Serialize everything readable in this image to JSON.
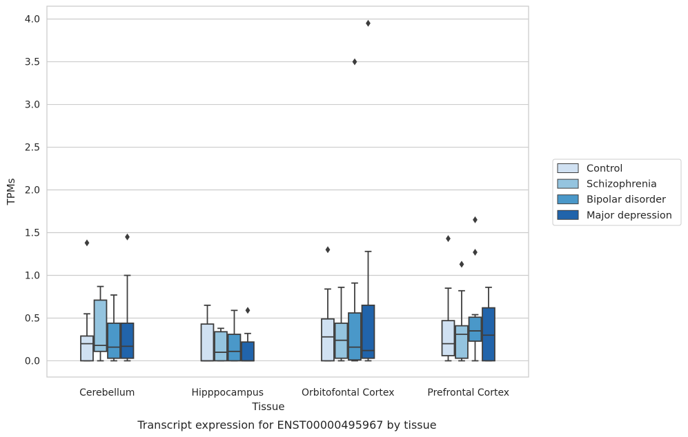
{
  "caption": "Transcript expression for ENST00000495967 by tissue",
  "chart_data": {
    "type": "box",
    "title": "",
    "xlabel": "Tissue",
    "ylabel": "TPMs",
    "ylim": [
      -0.19,
      4.15
    ],
    "yticks": [
      0.0,
      0.5,
      1.0,
      1.5,
      2.0,
      2.5,
      3.0,
      3.5,
      4.0
    ],
    "ytick_labels": [
      "0.0",
      "0.5",
      "1.0",
      "1.5",
      "2.0",
      "2.5",
      "3.0",
      "3.5",
      "4.0"
    ],
    "grid": "horizontal",
    "legend_position": "right",
    "categories": [
      "Cerebellum",
      "Hipppocampus",
      "Orbitofontal Cortex",
      "Prefrontal Cortex"
    ],
    "series": [
      {
        "name": "Control",
        "color": "#d0e1f2",
        "boxes": [
          {
            "whisker_low": 0.0,
            "q1": 0.0,
            "median": 0.2,
            "q3": 0.29,
            "whisker_high": 0.55,
            "outliers": [
              1.38
            ]
          },
          {
            "whisker_low": 0.0,
            "q1": 0.0,
            "median": 0.0,
            "q3": 0.43,
            "whisker_high": 0.65,
            "outliers": []
          },
          {
            "whisker_low": 0.0,
            "q1": 0.0,
            "median": 0.28,
            "q3": 0.49,
            "whisker_high": 0.84,
            "outliers": [
              1.3
            ]
          },
          {
            "whisker_low": 0.0,
            "q1": 0.06,
            "median": 0.2,
            "q3": 0.47,
            "whisker_high": 0.85,
            "outliers": [
              1.43
            ]
          }
        ]
      },
      {
        "name": "Schizophrenia",
        "color": "#94c4df",
        "boxes": [
          {
            "whisker_low": 0.0,
            "q1": 0.11,
            "median": 0.18,
            "q3": 0.71,
            "whisker_high": 0.87,
            "outliers": []
          },
          {
            "whisker_low": 0.0,
            "q1": 0.0,
            "median": 0.1,
            "q3": 0.34,
            "whisker_high": 0.38,
            "outliers": []
          },
          {
            "whisker_low": 0.0,
            "q1": 0.03,
            "median": 0.24,
            "q3": 0.44,
            "whisker_high": 0.86,
            "outliers": []
          },
          {
            "whisker_low": 0.0,
            "q1": 0.03,
            "median": 0.31,
            "q3": 0.41,
            "whisker_high": 0.82,
            "outliers": [
              1.13
            ]
          }
        ]
      },
      {
        "name": "Bipolar disorder",
        "color": "#4a98c9",
        "boxes": [
          {
            "whisker_low": 0.0,
            "q1": 0.03,
            "median": 0.16,
            "q3": 0.44,
            "whisker_high": 0.77,
            "outliers": []
          },
          {
            "whisker_low": 0.0,
            "q1": 0.0,
            "median": 0.11,
            "q3": 0.31,
            "whisker_high": 0.59,
            "outliers": []
          },
          {
            "whisker_low": 0.0,
            "q1": 0.01,
            "median": 0.16,
            "q3": 0.56,
            "whisker_high": 0.91,
            "outliers": [
              3.5
            ]
          },
          {
            "whisker_low": 0.0,
            "q1": 0.23,
            "median": 0.35,
            "q3": 0.51,
            "whisker_high": 0.54,
            "outliers": [
              1.27,
              1.65
            ]
          }
        ]
      },
      {
        "name": "Major depression",
        "color": "#2164ab",
        "boxes": [
          {
            "whisker_low": 0.0,
            "q1": 0.03,
            "median": 0.17,
            "q3": 0.44,
            "whisker_high": 1.0,
            "outliers": [
              1.45
            ]
          },
          {
            "whisker_low": 0.0,
            "q1": 0.0,
            "median": 0.0,
            "q3": 0.22,
            "whisker_high": 0.32,
            "outliers": [
              0.59
            ]
          },
          {
            "whisker_low": 0.0,
            "q1": 0.03,
            "median": 0.12,
            "q3": 0.65,
            "whisker_high": 1.28,
            "outliers": [
              3.95
            ]
          },
          {
            "whisker_low": 0.0,
            "q1": 0.0,
            "median": 0.3,
            "q3": 0.62,
            "whisker_high": 0.86,
            "outliers": []
          }
        ]
      }
    ]
  }
}
